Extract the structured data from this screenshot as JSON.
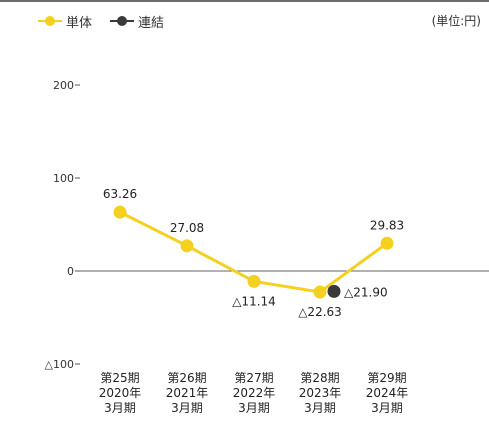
{
  "legend": {
    "standalone": "単体",
    "consolidated": "連結"
  },
  "unit": "(単位:円)",
  "chart_data": {
    "type": "line",
    "categories": [
      [
        "第25期",
        "2020年",
        "3月期"
      ],
      [
        "第26期",
        "2021年",
        "3月期"
      ],
      [
        "第27期",
        "2022年",
        "3月期"
      ],
      [
        "第28期",
        "2023年",
        "3月期"
      ],
      [
        "第29期",
        "2024年",
        "3月期"
      ]
    ],
    "series": [
      {
        "name": "単体",
        "color": "#f5d11f",
        "values": [
          63.26,
          27.08,
          -11.14,
          -22.63,
          29.83
        ],
        "labels": [
          "63.26",
          "27.08",
          "△11.14",
          "△22.63",
          "29.83"
        ]
      },
      {
        "name": "連結",
        "color": "#3a3a3a",
        "values": [
          null,
          null,
          null,
          -21.9,
          null
        ],
        "labels": [
          "",
          "",
          "",
          "△21.90",
          ""
        ]
      }
    ],
    "yticks": [
      200,
      100,
      0,
      -100
    ],
    "ytick_labels": [
      "200",
      "100",
      "0",
      "△100"
    ],
    "ylim": [
      -100,
      200
    ],
    "grid": false,
    "legend_position": "top-left"
  }
}
